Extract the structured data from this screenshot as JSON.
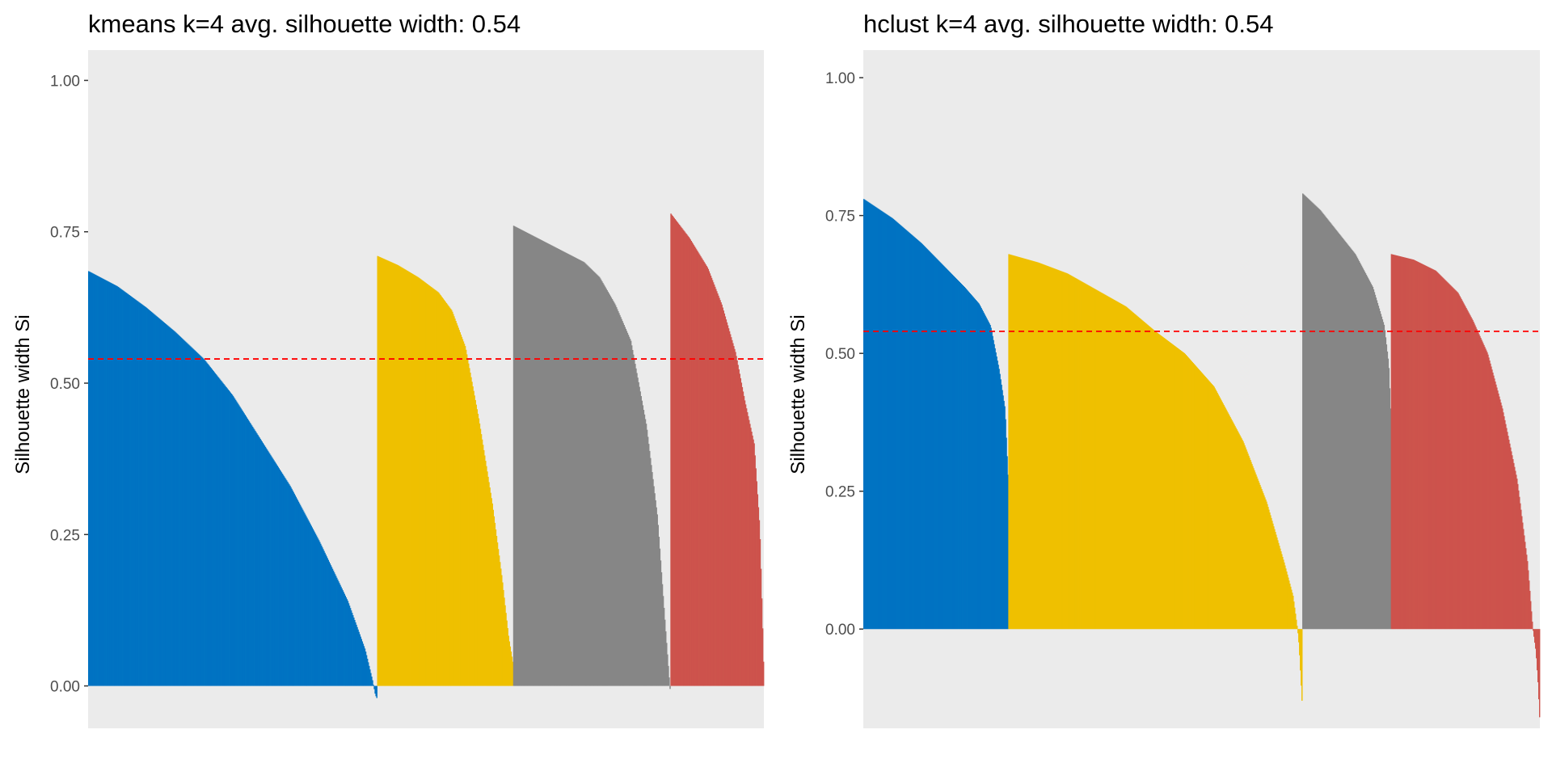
{
  "chart_data": [
    {
      "type": "bar",
      "title": "kmeans k=4 avg. silhouette width: 0.54",
      "xlabel": "",
      "ylabel": "Silhouette width Si",
      "ylim": [
        -0.07,
        1.05
      ],
      "yticks": [
        "0.00",
        "0.25",
        "0.50",
        "0.75",
        "1.00"
      ],
      "grid": false,
      "panel_background": "#EBEBEB",
      "avg_line": {
        "value": 0.54,
        "color": "#FF0000",
        "style": "dashed"
      },
      "clusters": [
        {
          "color": "#0073C2",
          "count": 340,
          "profile": [
            [
              0.0,
              0.685
            ],
            [
              0.1,
              0.66
            ],
            [
              0.2,
              0.625
            ],
            [
              0.3,
              0.585
            ],
            [
              0.4,
              0.54
            ],
            [
              0.5,
              0.48
            ],
            [
              0.6,
              0.405
            ],
            [
              0.7,
              0.33
            ],
            [
              0.8,
              0.24
            ],
            [
              0.9,
              0.14
            ],
            [
              0.96,
              0.06
            ],
            [
              0.985,
              0.01
            ],
            [
              0.995,
              -0.015
            ],
            [
              1.0,
              -0.02
            ]
          ]
        },
        {
          "color": "#EFC000",
          "count": 160,
          "profile": [
            [
              0.0,
              0.71
            ],
            [
              0.15,
              0.695
            ],
            [
              0.3,
              0.675
            ],
            [
              0.45,
              0.65
            ],
            [
              0.55,
              0.62
            ],
            [
              0.65,
              0.56
            ],
            [
              0.75,
              0.44
            ],
            [
              0.85,
              0.3
            ],
            [
              0.92,
              0.18
            ],
            [
              0.97,
              0.08
            ],
            [
              1.0,
              0.04
            ]
          ]
        },
        {
          "color": "#868686",
          "count": 185,
          "profile": [
            [
              0.0,
              0.76
            ],
            [
              0.15,
              0.74
            ],
            [
              0.3,
              0.72
            ],
            [
              0.45,
              0.7
            ],
            [
              0.55,
              0.675
            ],
            [
              0.65,
              0.63
            ],
            [
              0.75,
              0.57
            ],
            [
              0.85,
              0.43
            ],
            [
              0.92,
              0.28
            ],
            [
              0.97,
              0.1
            ],
            [
              1.0,
              -0.005
            ]
          ]
        },
        {
          "color": "#CD534C",
          "count": 110,
          "profile": [
            [
              0.0,
              0.78
            ],
            [
              0.2,
              0.74
            ],
            [
              0.4,
              0.69
            ],
            [
              0.55,
              0.63
            ],
            [
              0.7,
              0.55
            ],
            [
              0.8,
              0.47
            ],
            [
              0.9,
              0.4
            ],
            [
              0.96,
              0.26
            ],
            [
              0.99,
              0.1
            ],
            [
              1.0,
              0.04
            ]
          ]
        }
      ]
    },
    {
      "type": "bar",
      "title": "hclust k=4 avg. silhouette width: 0.54",
      "xlabel": "",
      "ylabel": "Silhouette width Si",
      "ylim": [
        -0.18,
        1.05
      ],
      "yticks": [
        "0.00",
        "0.25",
        "0.50",
        "0.75",
        "1.00"
      ],
      "grid": false,
      "panel_background": "#EBEBEB",
      "avg_line": {
        "value": 0.54,
        "color": "#FF0000",
        "style": "dashed"
      },
      "clusters": [
        {
          "color": "#0073C2",
          "count": 180,
          "profile": [
            [
              0.0,
              0.78
            ],
            [
              0.2,
              0.745
            ],
            [
              0.4,
              0.7
            ],
            [
              0.55,
              0.66
            ],
            [
              0.7,
              0.62
            ],
            [
              0.8,
              0.59
            ],
            [
              0.88,
              0.55
            ],
            [
              0.94,
              0.47
            ],
            [
              0.98,
              0.4
            ],
            [
              1.0,
              0.28
            ]
          ]
        },
        {
          "color": "#EFC000",
          "count": 365,
          "profile": [
            [
              0.0,
              0.68
            ],
            [
              0.1,
              0.665
            ],
            [
              0.2,
              0.645
            ],
            [
              0.3,
              0.615
            ],
            [
              0.4,
              0.585
            ],
            [
              0.5,
              0.54
            ],
            [
              0.6,
              0.5
            ],
            [
              0.7,
              0.44
            ],
            [
              0.8,
              0.34
            ],
            [
              0.88,
              0.23
            ],
            [
              0.94,
              0.12
            ],
            [
              0.97,
              0.06
            ],
            [
              0.985,
              0.0
            ],
            [
              0.99,
              -0.03
            ],
            [
              1.0,
              -0.13
            ]
          ]
        },
        {
          "color": "#868686",
          "count": 110,
          "profile": [
            [
              0.0,
              0.79
            ],
            [
              0.2,
              0.76
            ],
            [
              0.4,
              0.72
            ],
            [
              0.6,
              0.68
            ],
            [
              0.8,
              0.62
            ],
            [
              0.93,
              0.55
            ],
            [
              0.98,
              0.48
            ],
            [
              1.0,
              0.4
            ]
          ]
        },
        {
          "color": "#CD534C",
          "count": 185,
          "profile": [
            [
              0.0,
              0.68
            ],
            [
              0.15,
              0.67
            ],
            [
              0.3,
              0.65
            ],
            [
              0.45,
              0.61
            ],
            [
              0.55,
              0.56
            ],
            [
              0.65,
              0.5
            ],
            [
              0.75,
              0.4
            ],
            [
              0.85,
              0.27
            ],
            [
              0.92,
              0.12
            ],
            [
              0.955,
              0.0
            ],
            [
              0.975,
              -0.04
            ],
            [
              0.99,
              -0.1
            ],
            [
              1.0,
              -0.16
            ]
          ]
        }
      ]
    }
  ]
}
